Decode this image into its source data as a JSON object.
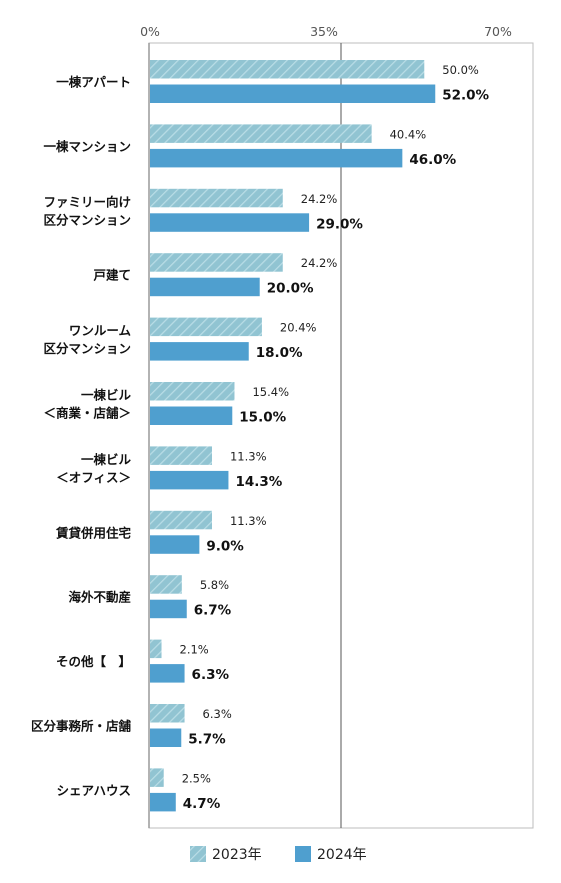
{
  "colors": {
    "series_2023": "#91c4d2",
    "series_2024": "#4f9fcf",
    "axis": "#9a9a9a"
  },
  "chart_data": {
    "type": "bar",
    "orientation": "horizontal",
    "categories": [
      [
        "一棟アパート"
      ],
      [
        "一棟マンション"
      ],
      [
        "ファミリー向け",
        "区分マンション"
      ],
      [
        "戸建て"
      ],
      [
        "ワンルーム",
        "区分マンション"
      ],
      [
        "一棟ビル",
        "＜商業・店舗＞"
      ],
      [
        "一棟ビル",
        "＜オフィス＞"
      ],
      [
        "賃貸併用住宅"
      ],
      [
        "海外不動産"
      ],
      [
        "その他【　】"
      ],
      [
        "区分事務所・店舗"
      ],
      [
        "シェアハウス"
      ]
    ],
    "series": [
      {
        "name": "2023年",
        "values": [
          50.0,
          40.4,
          24.2,
          24.2,
          20.4,
          15.4,
          11.3,
          11.3,
          5.8,
          2.1,
          6.3,
          2.5
        ],
        "labels": [
          "50.0%",
          "40.4%",
          "24.2%",
          "24.2%",
          "20.4%",
          "15.4%",
          "11.3%",
          "11.3%",
          "5.8%",
          "2.1%",
          "6.3%",
          "2.5%"
        ]
      },
      {
        "name": "2024年",
        "values": [
          52.0,
          46.0,
          29.0,
          20.0,
          18.0,
          15.0,
          14.3,
          9.0,
          6.7,
          6.3,
          5.7,
          4.7
        ],
        "labels": [
          "52.0%",
          "46.0%",
          "29.0%",
          "20.0%",
          "18.0%",
          "15.0%",
          "14.3%",
          "9.0%",
          "6.7%",
          "6.3%",
          "5.7%",
          "4.7%"
        ]
      }
    ],
    "xlim": [
      0,
      70
    ],
    "ticks": [
      0,
      35,
      70
    ],
    "tick_labels": [
      "0%",
      "35%",
      "70%"
    ],
    "legend_position": "bottom"
  }
}
